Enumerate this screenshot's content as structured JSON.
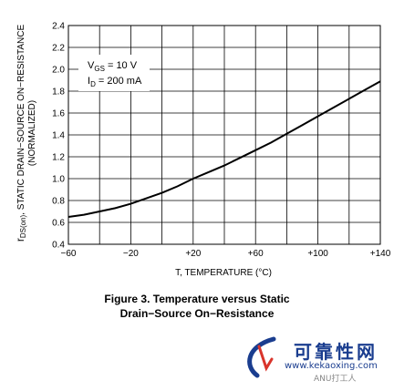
{
  "chart_data": {
    "type": "line",
    "title": "",
    "caption": [
      "Figure 3. Temperature versus Static",
      "Drain−Source On−Resistance"
    ],
    "xlabel": "T, TEMPERATURE (°C)",
    "ylabel": {
      "prefix": "r",
      "subscript": "DS(on)",
      "rest": ", STATIC DRAIN−SOURCE ON−RESISTANCE",
      "line2": "(NORMALIZED)"
    },
    "xlim": [
      -60,
      140
    ],
    "ylim": [
      0.4,
      2.4
    ],
    "xticks": [
      -60,
      -40,
      -20,
      0,
      20,
      40,
      60,
      80,
      100,
      120,
      140
    ],
    "xtick_labels": [
      "−60",
      "",
      "−20",
      "",
      "+20",
      "",
      "+60",
      "",
      "+100",
      "",
      "+140"
    ],
    "yticks": [
      0.4,
      0.6,
      0.8,
      1.0,
      1.2,
      1.4,
      1.6,
      1.8,
      2.0,
      2.2,
      2.4
    ],
    "ytick_labels": [
      "0.4",
      "0.6",
      "0.8",
      "1.0",
      "1.2",
      "1.4",
      "1.6",
      "1.8",
      "2.0",
      "2.2",
      "2.4"
    ],
    "grid": true,
    "annotation": {
      "line1_main": "V",
      "line1_sub": "GS",
      "line1_rest": " = 10 V",
      "line2_main": "I",
      "line2_sub": "D",
      "line2_rest": " = 200 mA"
    },
    "series": [
      {
        "x": [
          -60,
          -50,
          -40,
          -30,
          -20,
          -10,
          0,
          10,
          20,
          30,
          40,
          50,
          60,
          70,
          80,
          90,
          100,
          110,
          120,
          130,
          140
        ],
        "y": [
          0.65,
          0.67,
          0.7,
          0.73,
          0.77,
          0.82,
          0.87,
          0.93,
          1.0,
          1.06,
          1.12,
          1.19,
          1.26,
          1.33,
          1.41,
          1.49,
          1.57,
          1.65,
          1.73,
          1.81,
          1.89
        ]
      }
    ]
  },
  "watermark": {
    "brand": "可靠性网",
    "url": "www.kekaoxing.com",
    "account": "ANU打工人",
    "colors": {
      "brand": "#1a3d8f",
      "accent": "#d9342b"
    }
  }
}
